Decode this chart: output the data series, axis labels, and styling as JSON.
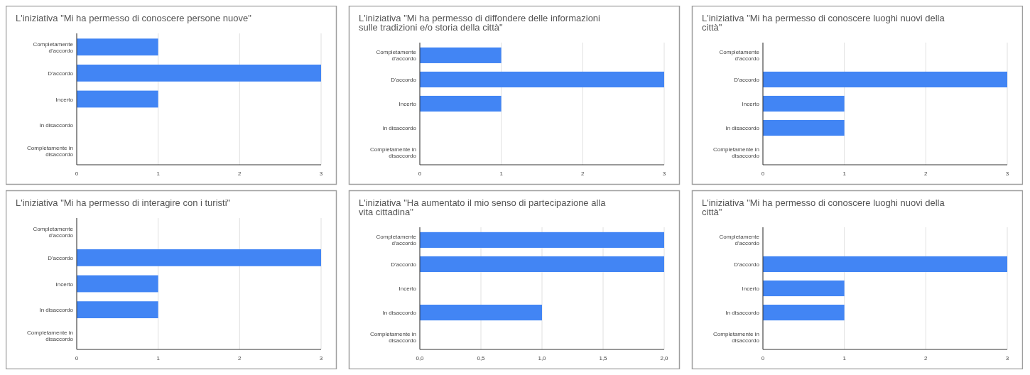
{
  "chart_data": [
    {
      "type": "bar",
      "orientation": "horizontal",
      "title": "L'iniziativa \"Mi ha permesso di conoscere persone nuove\"",
      "categories": [
        "Completamente d'accordo",
        "D'accordo",
        "Incerto",
        "In disaccordo",
        "Completamente in disaccordo"
      ],
      "values": [
        1,
        3,
        1,
        0,
        0
      ],
      "color": "#4285f4",
      "xlim": [
        0,
        3
      ],
      "xticks": [
        0,
        1,
        2,
        3
      ],
      "grid": "x"
    },
    {
      "type": "bar",
      "orientation": "horizontal",
      "title": "L'iniziativa \"Mi ha permesso di diffondere delle informazioni sulle tradizioni e/o storia della città\"",
      "categories": [
        "Completamente d'accordo",
        "D'accordo",
        "Incerto",
        "In disaccordo",
        "Completamente in disaccordo"
      ],
      "values": [
        1,
        3,
        1,
        0,
        0
      ],
      "color": "#4285f4",
      "xlim": [
        0,
        3
      ],
      "xticks": [
        0,
        1,
        2,
        3
      ],
      "grid": "x"
    },
    {
      "type": "bar",
      "orientation": "horizontal",
      "title": "L'iniziativa \"Mi ha permesso di conoscere luoghi nuovi della città\"",
      "categories": [
        "Completamente d'accordo",
        "D'accordo",
        "Incerto",
        "In disaccordo",
        "Completamente in disaccordo"
      ],
      "values": [
        0,
        3,
        1,
        1,
        0
      ],
      "color": "#4285f4",
      "xlim": [
        0,
        3
      ],
      "xticks": [
        0,
        1,
        2,
        3
      ],
      "grid": "x"
    },
    {
      "type": "bar",
      "orientation": "horizontal",
      "title": "L'iniziativa \"Mi ha permesso di interagire con i turisti\"",
      "categories": [
        "Completamente d'accordo",
        "D'accordo",
        "Incerto",
        "In disaccordo",
        "Completamente in disaccordo"
      ],
      "values": [
        0,
        3,
        1,
        1,
        0
      ],
      "color": "#4285f4",
      "xlim": [
        0,
        3
      ],
      "xticks": [
        0,
        1,
        2,
        3
      ],
      "grid": "x"
    },
    {
      "type": "bar",
      "orientation": "horizontal",
      "title": "L'iniziativa \"Ha aumentato il mio senso di partecipazione alla vita cittadina\"",
      "categories": [
        "Completamente d'accordo",
        "D'accordo",
        "Incerto",
        "In disaccordo",
        "Completamente in disaccordo"
      ],
      "values": [
        2,
        2,
        0,
        1,
        0
      ],
      "color": "#4285f4",
      "xlim": [
        0,
        2
      ],
      "xticks": [
        {
          "value": 0,
          "label": "0,0"
        },
        {
          "value": 0.5,
          "label": "0,5"
        },
        {
          "value": 1,
          "label": "1,0"
        },
        {
          "value": 1.5,
          "label": "1,5"
        },
        {
          "value": 2,
          "label": "2,0"
        }
      ],
      "grid": "x"
    },
    {
      "type": "bar",
      "orientation": "horizontal",
      "title": "L'iniziativa \"Mi ha permesso di conoscere luoghi nuovi della città\"",
      "categories": [
        "Completamente d'accordo",
        "D'accordo",
        "Incerto",
        "In disaccordo",
        "Completamente in disaccordo"
      ],
      "values": [
        0,
        3,
        1,
        1,
        0
      ],
      "color": "#4285f4",
      "xlim": [
        0,
        3
      ],
      "xticks": [
        0,
        1,
        2,
        3
      ],
      "grid": "x"
    }
  ]
}
